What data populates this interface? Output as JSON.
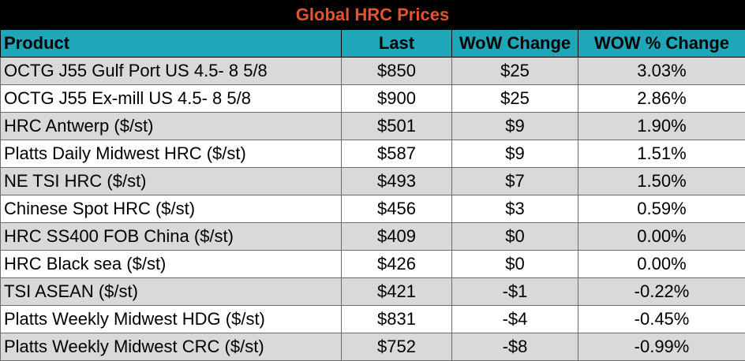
{
  "title": "Global HRC Prices",
  "colors": {
    "title_bg": "#000000",
    "title_text": "#e5542a",
    "header_bg": "#1fa6b8",
    "row_alt": "#d9d9d9"
  },
  "headers": {
    "product": "Product",
    "last": "Last",
    "wow_change": "WoW Change",
    "wow_pct": "WOW % Change"
  },
  "rows": [
    {
      "product": "OCTG J55 Gulf Port US 4.5- 8 5/8",
      "last": "$850",
      "wow_change": "$25",
      "wow_pct": "3.03%"
    },
    {
      "product": "OCTG J55 Ex-mill US 4.5- 8 5/8",
      "last": "$900",
      "wow_change": "$25",
      "wow_pct": "2.86%"
    },
    {
      "product": "HRC Antwerp ($/st)",
      "last": "$501",
      "wow_change": "$9",
      "wow_pct": "1.90%"
    },
    {
      "product": "Platts Daily Midwest HRC ($/st)",
      "last": "$587",
      "wow_change": "$9",
      "wow_pct": "1.51%"
    },
    {
      "product": "NE TSI HRC ($/st)",
      "last": "$493",
      "wow_change": "$7",
      "wow_pct": "1.50%"
    },
    {
      "product": "Chinese Spot HRC ($/st)",
      "last": "$456",
      "wow_change": "$3",
      "wow_pct": "0.59%"
    },
    {
      "product": "HRC SS400 FOB China ($/st)",
      "last": "$409",
      "wow_change": "$0",
      "wow_pct": "0.00%"
    },
    {
      "product": "HRC Black sea ($/st)",
      "last": "$426",
      "wow_change": "$0",
      "wow_pct": "0.00%"
    },
    {
      "product": "TSI ASEAN ($/st)",
      "last": "$421",
      "wow_change": "-$1",
      "wow_pct": "-0.22%"
    },
    {
      "product": "Platts Weekly Midwest HDG ($/st)",
      "last": "$831",
      "wow_change": "-$4",
      "wow_pct": "-0.45%"
    },
    {
      "product": "Platts Weekly Midwest CRC ($/st)",
      "last": "$752",
      "wow_change": "-$8",
      "wow_pct": "-0.99%"
    }
  ]
}
